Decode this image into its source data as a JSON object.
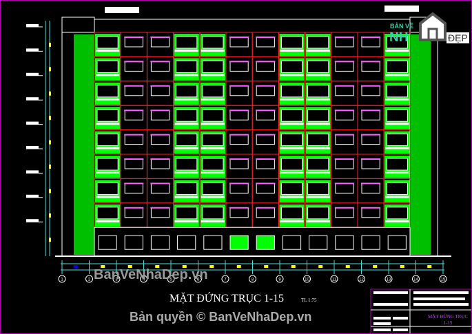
{
  "drawing": {
    "title": "MẶT ĐỨNG TRỤC 1-15",
    "scale": "TL 1:75",
    "axes": [
      "1",
      "2",
      "3",
      "4",
      "5",
      "6",
      "7",
      "8",
      "9",
      "10",
      "11",
      "12",
      "13",
      "14",
      "15"
    ],
    "floors": 8,
    "green_bays": [
      0,
      3,
      4,
      7,
      8,
      11
    ],
    "colors": {
      "background": "#000000",
      "facade_green": "#00ff00",
      "frame_red": "#ff2020",
      "window_magenta": "#ff60ff",
      "dimension_cyan": "#40e0e0",
      "lines_white": "#ffffff",
      "frame_border": "#b000b0"
    }
  },
  "title_block": {
    "sheet_title": "MẶT ĐỨNG TRỤC\n1-15"
  },
  "watermark": {
    "site": "BanVeNhaDep.vn",
    "copyright": "Bản quyền © BanVeNhaDep.vn"
  },
  "logo": {
    "line1": "BẢN VẼ",
    "line2": "NH",
    "line3": "ĐẸP"
  }
}
